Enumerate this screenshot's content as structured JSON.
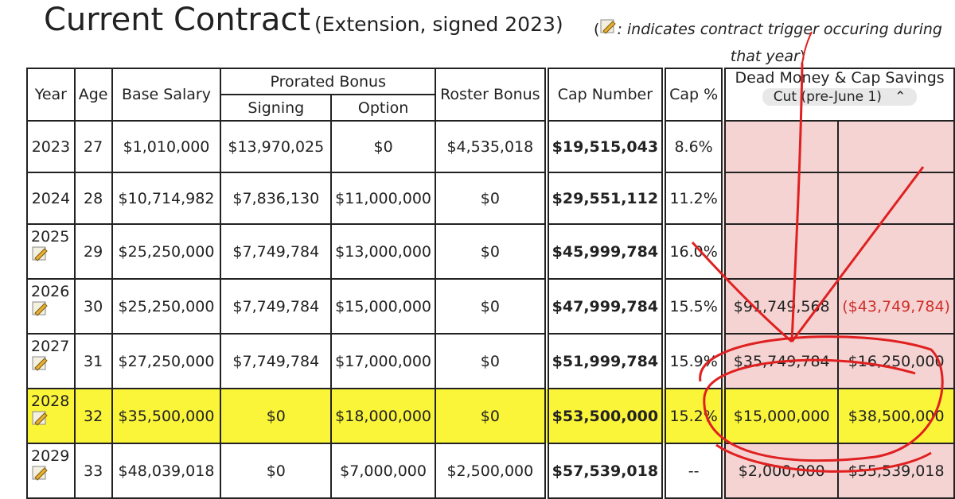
{
  "header": {
    "title": "Current Contract",
    "subtitle": "(Extension, signed 2023)",
    "note_open": "(",
    "note": ": indicates contract trigger occuring during that year",
    "note_close": ")"
  },
  "table": {
    "headers": {
      "year": "Year",
      "age": "Age",
      "base_salary": "Base Salary",
      "prorated_bonus": "Prorated Bonus",
      "signing": "Signing",
      "option": "Option",
      "roster_bonus": "Roster Bonus",
      "cap_number": "Cap Number",
      "cap_pct": "Cap %",
      "dead_cap": "Dead Money & Cap Savings",
      "scenario": "Cut (pre-June 1)"
    },
    "rows": [
      {
        "year": "2023",
        "age": "27",
        "base_salary": "$1,010,000",
        "signing": "$13,970,025",
        "option": "$0",
        "roster_bonus": "$4,535,018",
        "cap_number": "$19,515,043",
        "cap_pct": "8.6%",
        "trigger": false
      },
      {
        "year": "2024",
        "age": "28",
        "base_salary": "$10,714,982",
        "signing": "$7,836,130",
        "option": "$11,000,000",
        "roster_bonus": "$0",
        "cap_number": "$29,551,112",
        "cap_pct": "11.2%",
        "trigger": false
      },
      {
        "year": "2025",
        "age": "29",
        "base_salary": "$25,250,000",
        "signing": "$7,749,784",
        "option": "$13,000,000",
        "roster_bonus": "$0",
        "cap_number": "$45,999,784",
        "cap_pct": "16.0%",
        "trigger": true
      },
      {
        "year": "2026",
        "age": "30",
        "base_salary": "$25,250,000",
        "signing": "$7,749,784",
        "option": "$15,000,000",
        "roster_bonus": "$0",
        "cap_number": "$47,999,784",
        "cap_pct": "15.5%",
        "trigger": true,
        "dead_money": "$91,749,568",
        "cap_savings": "($43,749,784)"
      },
      {
        "year": "2027",
        "age": "31",
        "base_salary": "$27,250,000",
        "signing": "$7,749,784",
        "option": "$17,000,000",
        "roster_bonus": "$0",
        "cap_number": "$51,999,784",
        "cap_pct": "15.9%",
        "trigger": true,
        "dead_money": "$35,749,784",
        "cap_savings": "$16,250,000"
      },
      {
        "year": "2028",
        "age": "32",
        "base_salary": "$35,500,000",
        "signing": "$0",
        "option": "$18,000,000",
        "roster_bonus": "$0",
        "cap_number": "$53,500,000",
        "cap_pct": "15.2%",
        "trigger": true,
        "dead_money": "$15,000,000",
        "cap_savings": "$38,500,000",
        "highlight": true
      },
      {
        "year": "2029",
        "age": "33",
        "base_salary": "$48,039,018",
        "signing": "$0",
        "option": "$7,000,000",
        "roster_bonus": "$2,500,000",
        "cap_number": "$57,539,018",
        "cap_pct": "--",
        "trigger": true,
        "dead_money": "$2,000,000",
        "cap_savings": "$55,539,018"
      }
    ]
  }
}
